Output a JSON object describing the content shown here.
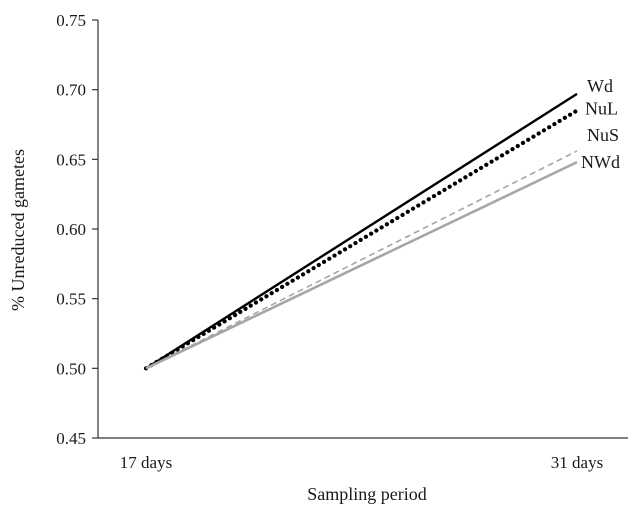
{
  "chart_data": {
    "type": "line",
    "title": "",
    "xlabel": "Sampling period",
    "ylabel": "% Unreduced gametes",
    "categories": [
      "17 days",
      "31 days"
    ],
    "ylim": [
      0.45,
      0.75
    ],
    "yticks": [
      "0.45",
      "0.50",
      "0.55",
      "0.60",
      "0.65",
      "0.70",
      "0.75"
    ],
    "grid": false,
    "legend": "inline labels at line ends (right)",
    "series": [
      {
        "name": "Wd",
        "values": [
          0.5,
          0.697
        ],
        "color": "#000000",
        "style": "solid"
      },
      {
        "name": "NuL",
        "values": [
          0.5,
          0.685
        ],
        "color": "#000000",
        "style": "dotted"
      },
      {
        "name": "NuS",
        "values": [
          0.5,
          0.656
        ],
        "color": "#a6a6a6",
        "style": "dashed"
      },
      {
        "name": "NWd",
        "values": [
          0.5,
          0.648
        ],
        "color": "#a6a6a6",
        "style": "solid"
      }
    ]
  }
}
